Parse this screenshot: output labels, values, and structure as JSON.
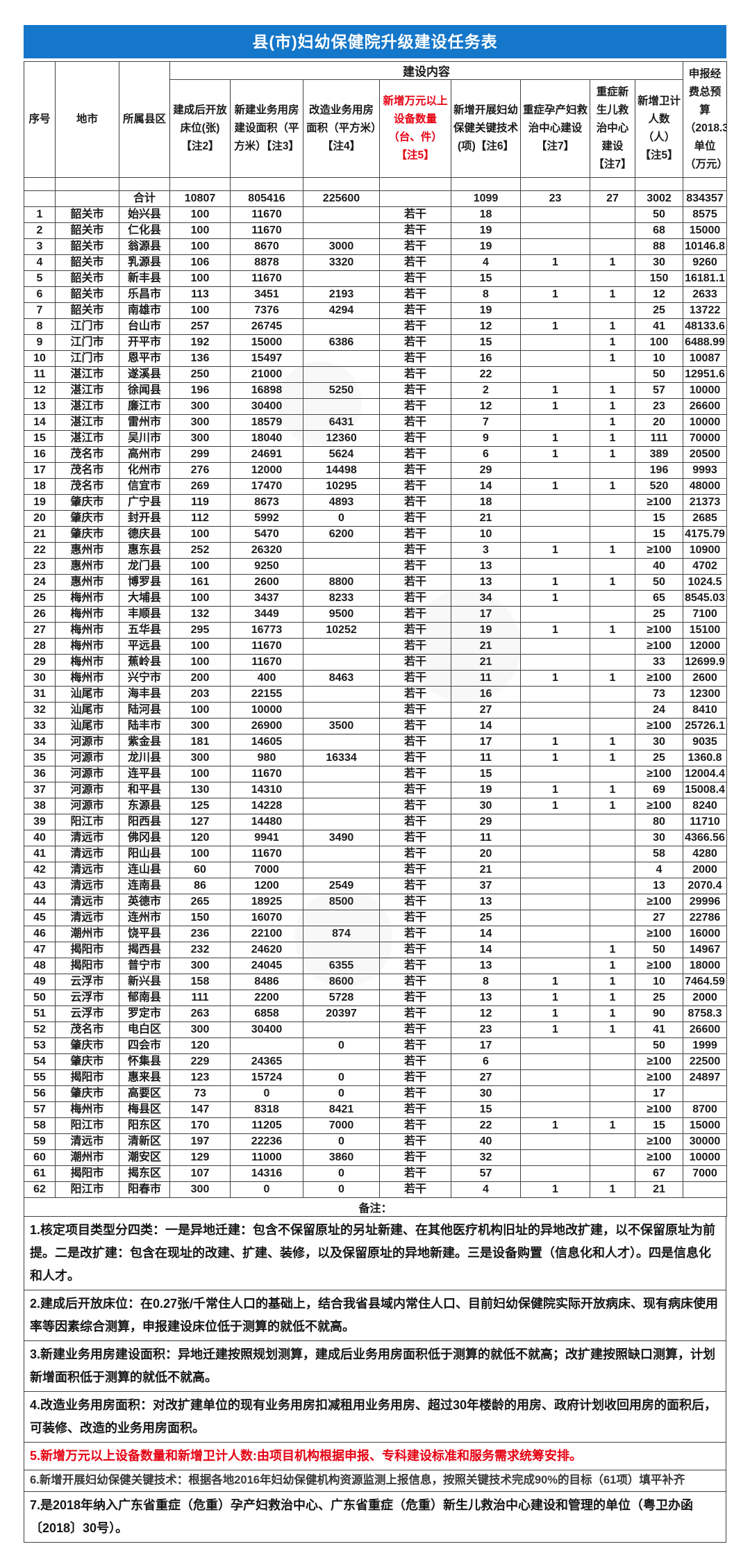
{
  "title": "县(市)妇幼保健院升级建设任务表",
  "colors": {
    "title_bg": "#1577c9",
    "accent_red": "#e60012",
    "border": "#414141"
  },
  "header": {
    "group": "建设内容",
    "columns": [
      "序号",
      "地市",
      "所属县区",
      "建成后开放床位(张)【注2】",
      "新建业务用房建设面积（平方米）【注3】",
      "改造业务用房面积（平方米）【注4】",
      "新增万元以上设备数量（台、件）【注5】",
      "新增开展妇幼保健关键技术(项)【注6】",
      "重症孕产妇救治中心建设【注7】",
      "重症新生儿救治中心建设【注7】",
      "新增卫计人数（人）【注5】",
      "申报经费总预算（2018.3）单位（万元）"
    ]
  },
  "table": {
    "total_row": [
      "",
      "",
      "合计",
      "10807",
      "805416",
      "225600",
      "",
      "1099",
      "23",
      "27",
      "3002",
      "834357"
    ],
    "rows": [
      [
        "1",
        "韶关市",
        "始兴县",
        "100",
        "11670",
        "",
        "若干",
        "18",
        "",
        "",
        "50",
        "8575"
      ],
      [
        "2",
        "韶关市",
        "仁化县",
        "100",
        "11670",
        "",
        "若干",
        "19",
        "",
        "",
        "68",
        "15000"
      ],
      [
        "3",
        "韶关市",
        "翁源县",
        "100",
        "8670",
        "3000",
        "若干",
        "19",
        "",
        "",
        "88",
        "10146.8"
      ],
      [
        "4",
        "韶关市",
        "乳源县",
        "106",
        "8878",
        "3320",
        "若干",
        "4",
        "1",
        "1",
        "30",
        "9260"
      ],
      [
        "5",
        "韶关市",
        "新丰县",
        "100",
        "11670",
        "",
        "若干",
        "15",
        "",
        "",
        "150",
        "16181.1"
      ],
      [
        "6",
        "韶关市",
        "乐昌市",
        "113",
        "3451",
        "2193",
        "若干",
        "8",
        "1",
        "1",
        "12",
        "2633"
      ],
      [
        "7",
        "韶关市",
        "南雄市",
        "100",
        "7376",
        "4294",
        "若干",
        "19",
        "",
        "",
        "25",
        "13722"
      ],
      [
        "8",
        "江门市",
        "台山市",
        "257",
        "26745",
        "",
        "若干",
        "12",
        "1",
        "1",
        "41",
        "48133.6"
      ],
      [
        "9",
        "江门市",
        "开平市",
        "192",
        "15000",
        "6386",
        "若干",
        "15",
        "",
        "1",
        "100",
        "6488.99"
      ],
      [
        "10",
        "江门市",
        "恩平市",
        "136",
        "15497",
        "",
        "若干",
        "16",
        "",
        "1",
        "10",
        "10087"
      ],
      [
        "11",
        "湛江市",
        "遂溪县",
        "250",
        "21000",
        "",
        "若干",
        "22",
        "",
        "",
        "50",
        "12951.6"
      ],
      [
        "12",
        "湛江市",
        "徐闻县",
        "196",
        "16898",
        "5250",
        "若干",
        "2",
        "1",
        "1",
        "57",
        "10000"
      ],
      [
        "13",
        "湛江市",
        "廉江市",
        "300",
        "30400",
        "",
        "若干",
        "12",
        "1",
        "1",
        "23",
        "26600"
      ],
      [
        "14",
        "湛江市",
        "雷州市",
        "300",
        "18579",
        "6431",
        "若干",
        "7",
        "",
        "1",
        "20",
        "10000"
      ],
      [
        "15",
        "湛江市",
        "吴川市",
        "300",
        "18040",
        "12360",
        "若干",
        "9",
        "1",
        "1",
        "111",
        "70000"
      ],
      [
        "16",
        "茂名市",
        "高州市",
        "299",
        "24691",
        "5624",
        "若干",
        "6",
        "1",
        "1",
        "389",
        "20500"
      ],
      [
        "17",
        "茂名市",
        "化州市",
        "276",
        "12000",
        "14498",
        "若干",
        "29",
        "",
        "",
        "196",
        "9993"
      ],
      [
        "18",
        "茂名市",
        "信宜市",
        "269",
        "17470",
        "10295",
        "若干",
        "14",
        "1",
        "1",
        "520",
        "48000"
      ],
      [
        "19",
        "肇庆市",
        "广宁县",
        "119",
        "8673",
        "4893",
        "若干",
        "18",
        "",
        "",
        "≥100",
        "21373"
      ],
      [
        "20",
        "肇庆市",
        "封开县",
        "112",
        "5992",
        "0",
        "若干",
        "21",
        "",
        "",
        "15",
        "2685"
      ],
      [
        "21",
        "肇庆市",
        "德庆县",
        "100",
        "5470",
        "6200",
        "若干",
        "10",
        "",
        "",
        "15",
        "4175.79"
      ],
      [
        "22",
        "惠州市",
        "惠东县",
        "252",
        "26320",
        "",
        "若干",
        "3",
        "1",
        "1",
        "≥100",
        "10900"
      ],
      [
        "23",
        "惠州市",
        "龙门县",
        "100",
        "9250",
        "",
        "若干",
        "13",
        "",
        "",
        "40",
        "4702"
      ],
      [
        "24",
        "惠州市",
        "博罗县",
        "161",
        "2600",
        "8800",
        "若干",
        "13",
        "1",
        "1",
        "50",
        "1024.5"
      ],
      [
        "25",
        "梅州市",
        "大埔县",
        "100",
        "3437",
        "8233",
        "若干",
        "34",
        "1",
        "",
        "65",
        "8545.03"
      ],
      [
        "26",
        "梅州市",
        "丰顺县",
        "132",
        "3449",
        "9500",
        "若干",
        "17",
        "",
        "",
        "25",
        "7100"
      ],
      [
        "27",
        "梅州市",
        "五华县",
        "295",
        "16773",
        "10252",
        "若干",
        "19",
        "1",
        "1",
        "≥100",
        "15100"
      ],
      [
        "28",
        "梅州市",
        "平远县",
        "100",
        "11670",
        "",
        "若干",
        "21",
        "",
        "",
        "≥100",
        "12000"
      ],
      [
        "29",
        "梅州市",
        "蕉岭县",
        "100",
        "11670",
        "",
        "若干",
        "21",
        "",
        "",
        "33",
        "12699.9"
      ],
      [
        "30",
        "梅州市",
        "兴宁市",
        "200",
        "400",
        "8463",
        "若干",
        "11",
        "1",
        "1",
        "≥100",
        "2600"
      ],
      [
        "31",
        "汕尾市",
        "海丰县",
        "203",
        "22155",
        "",
        "若干",
        "16",
        "",
        "",
        "73",
        "12300"
      ],
      [
        "32",
        "汕尾市",
        "陆河县",
        "100",
        "10000",
        "",
        "若干",
        "27",
        "",
        "",
        "24",
        "8410"
      ],
      [
        "33",
        "汕尾市",
        "陆丰市",
        "300",
        "26900",
        "3500",
        "若干",
        "14",
        "",
        "",
        "≥100",
        "25726.1"
      ],
      [
        "34",
        "河源市",
        "紫金县",
        "181",
        "14605",
        "",
        "若干",
        "17",
        "1",
        "1",
        "30",
        "9035"
      ],
      [
        "35",
        "河源市",
        "龙川县",
        "300",
        "980",
        "16334",
        "若干",
        "11",
        "1",
        "1",
        "25",
        "1360.8"
      ],
      [
        "36",
        "河源市",
        "连平县",
        "100",
        "11670",
        "",
        "若干",
        "15",
        "",
        "",
        "≥100",
        "12004.4"
      ],
      [
        "37",
        "河源市",
        "和平县",
        "130",
        "14310",
        "",
        "若干",
        "19",
        "1",
        "1",
        "69",
        "15008.4"
      ],
      [
        "38",
        "河源市",
        "东源县",
        "125",
        "14228",
        "",
        "若干",
        "30",
        "1",
        "1",
        "≥100",
        "8240"
      ],
      [
        "39",
        "阳江市",
        "阳西县",
        "127",
        "14480",
        "",
        "若干",
        "29",
        "",
        "",
        "80",
        "11710"
      ],
      [
        "40",
        "清远市",
        "佛冈县",
        "120",
        "9941",
        "3490",
        "若干",
        "11",
        "",
        "",
        "30",
        "4366.56"
      ],
      [
        "41",
        "清远市",
        "阳山县",
        "100",
        "11670",
        "",
        "若干",
        "20",
        "",
        "",
        "58",
        "4280"
      ],
      [
        "42",
        "清远市",
        "连山县",
        "60",
        "7000",
        "",
        "若干",
        "21",
        "",
        "",
        "4",
        "2000"
      ],
      [
        "43",
        "清远市",
        "连南县",
        "86",
        "1200",
        "2549",
        "若干",
        "37",
        "",
        "",
        "13",
        "2070.4"
      ],
      [
        "44",
        "清远市",
        "英德市",
        "265",
        "18925",
        "8500",
        "若干",
        "13",
        "",
        "",
        "≥100",
        "29996"
      ],
      [
        "45",
        "清远市",
        "连州市",
        "150",
        "16070",
        "",
        "若干",
        "25",
        "",
        "",
        "27",
        "22786"
      ],
      [
        "46",
        "潮州市",
        "饶平县",
        "236",
        "22100",
        "874",
        "若干",
        "14",
        "",
        "",
        "≥100",
        "16000"
      ],
      [
        "47",
        "揭阳市",
        "揭西县",
        "232",
        "24620",
        "",
        "若干",
        "14",
        "",
        "1",
        "50",
        "14967"
      ],
      [
        "48",
        "揭阳市",
        "普宁市",
        "300",
        "24045",
        "6355",
        "若干",
        "13",
        "",
        "1",
        "≥100",
        "18000"
      ],
      [
        "49",
        "云浮市",
        "新兴县",
        "158",
        "8486",
        "8600",
        "若干",
        "8",
        "1",
        "1",
        "10",
        "7464.59"
      ],
      [
        "50",
        "云浮市",
        "郁南县",
        "111",
        "2200",
        "5728",
        "若干",
        "13",
        "1",
        "1",
        "25",
        "2000"
      ],
      [
        "51",
        "云浮市",
        "罗定市",
        "263",
        "6858",
        "20397",
        "若干",
        "12",
        "1",
        "1",
        "90",
        "8758.3"
      ],
      [
        "52",
        "茂名市",
        "电白区",
        "300",
        "30400",
        "",
        "若干",
        "23",
        "1",
        "1",
        "41",
        "26600"
      ],
      [
        "53",
        "肇庆市",
        "四会市",
        "120",
        "",
        "0",
        "若干",
        "17",
        "",
        "",
        "50",
        "1999"
      ],
      [
        "54",
        "肇庆市",
        "怀集县",
        "229",
        "24365",
        "",
        "若干",
        "6",
        "",
        "",
        "≥100",
        "22500"
      ],
      [
        "55",
        "揭阳市",
        "惠来县",
        "123",
        "15724",
        "0",
        "若干",
        "27",
        "",
        "",
        "≥100",
        "24897"
      ],
      [
        "56",
        "肇庆市",
        "高要区",
        "73",
        "0",
        "0",
        "若干",
        "30",
        "",
        "",
        "17",
        ""
      ],
      [
        "57",
        "梅州市",
        "梅县区",
        "147",
        "8318",
        "8421",
        "若干",
        "15",
        "",
        "",
        "≥100",
        "8700"
      ],
      [
        "58",
        "阳江市",
        "阳东区",
        "170",
        "11205",
        "7000",
        "若干",
        "22",
        "1",
        "1",
        "15",
        "15000"
      ],
      [
        "59",
        "清远市",
        "清新区",
        "197",
        "22236",
        "0",
        "若干",
        "40",
        "",
        "",
        "≥100",
        "30000"
      ],
      [
        "60",
        "潮州市",
        "潮安区",
        "129",
        "11000",
        "3860",
        "若干",
        "32",
        "",
        "",
        "≥100",
        "10000"
      ],
      [
        "61",
        "揭阳市",
        "揭东区",
        "107",
        "14316",
        "0",
        "若干",
        "57",
        "",
        "",
        "67",
        "7000"
      ],
      [
        "62",
        "阳江市",
        "阳春市",
        "300",
        "0",
        "0",
        "若干",
        "4",
        "1",
        "1",
        "21",
        ""
      ]
    ],
    "footer_label": "备注："
  },
  "notes": [
    {
      "text": "1.核定项目类型分四类：一是异地迁建：包含不保留原址的另址新建、在其他医疗机构旧址的异地改扩建，以不保留原址为前提。二是改扩建：包含在现址的改建、扩建、装修，以及保留原址的异地新建。三是设备购置（信息化和人才）。四是信息化和人才。",
      "red": false
    },
    {
      "text": "2.建成后开放床位：在0.27张/千常住人口的基础上，结合我省县域内常住人口、目前妇幼保健院实际开放病床、现有病床使用率等因素综合测算，申报建设床位低于测算的就低不就高。",
      "red": false
    },
    {
      "text": "3.新建业务用房建设面积：异地迁建按照规划测算，建成后业务用房面积低于测算的就低不就高；改扩建按照缺口测算，计划新增面积低于测算的就低不就高。",
      "red": false
    },
    {
      "text": "4.改造业务用房面积：对改扩建单位的现有业务用房扣减租用业务用房、超过30年楼龄的用房、政府计划收回用房的面积后，可装修、改造的业务用房面积。",
      "red": false
    },
    {
      "text": "5.新增万元以上设备数量和新增卫计人数:由项目机构根据申报、专科建设标准和服务需求统筹安排。",
      "red": true
    },
    {
      "text": "6.新增开展妇幼保健关键技术：根据各地2016年妇幼保健机构资源监测上报信息，按照关键技术完成90%的目标（61项）填平补齐",
      "red": false
    },
    {
      "text": "7.是2018年纳入广东省重症（危重）孕产妇救治中心、广东省重症（危重）新生儿救治中心建设和管理的单位（粤卫办函〔2018〕30号）。",
      "red": false
    }
  ]
}
